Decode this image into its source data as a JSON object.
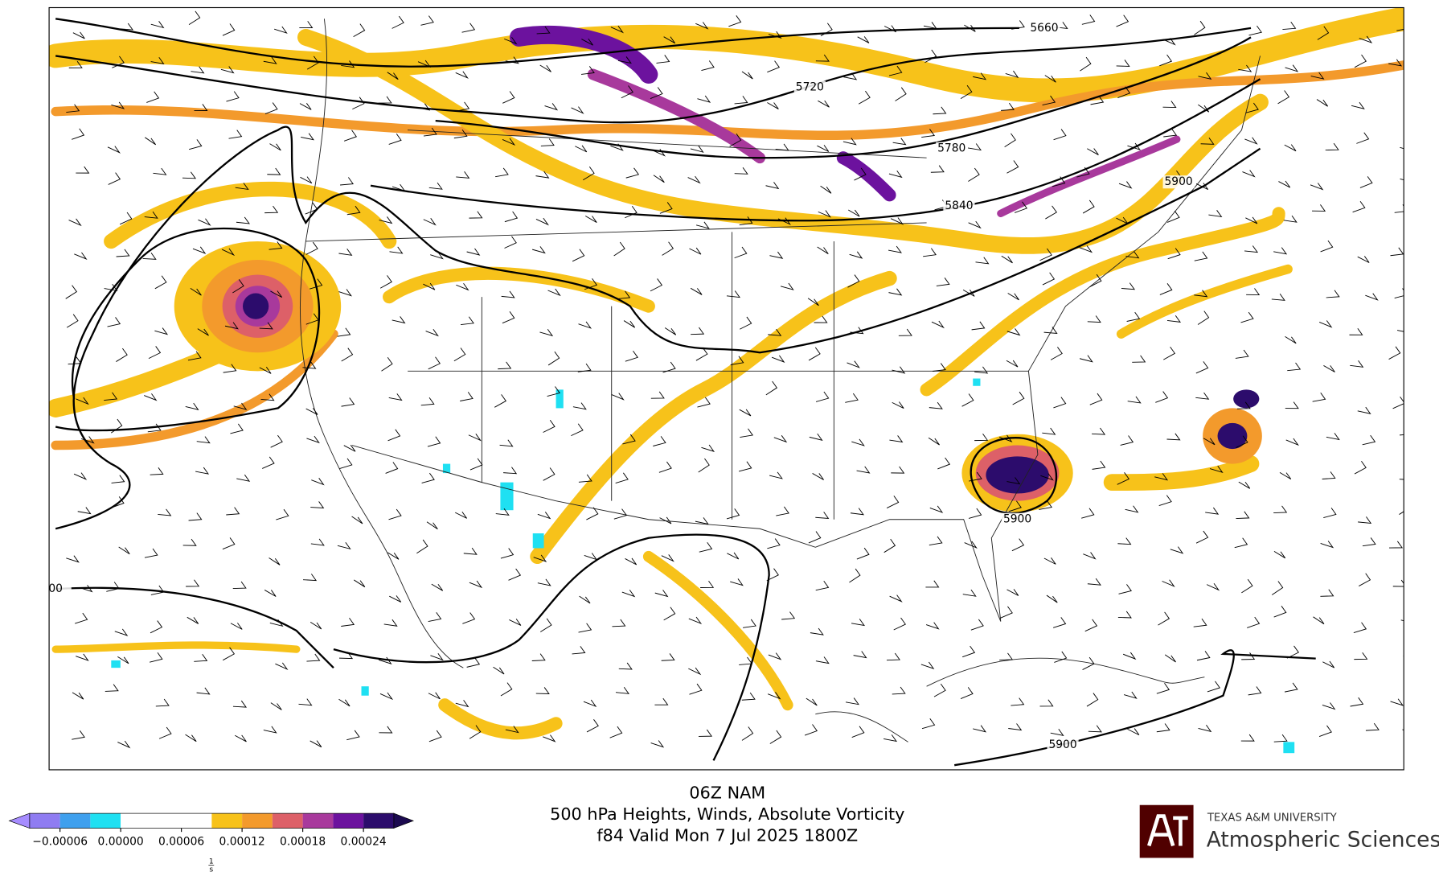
{
  "map": {
    "contour_labels": [
      5660,
      5720,
      5780,
      5840,
      5900,
      5900,
      5900,
      "00"
    ]
  },
  "title": {
    "lines": [
      "06Z NAM",
      "500 hPa Heights, Winds, Absolute Vorticity",
      "f84 Valid Mon 7 Jul 2025 1800Z"
    ]
  },
  "colorbar": {
    "levels": [
      -9e-05,
      -6e-05,
      -3e-05,
      0,
      3e-05,
      6e-05,
      9e-05,
      0.00012,
      0.00015,
      0.00018,
      0.00021,
      0.00024,
      0.00027
    ],
    "colors": [
      "#8f7cf2",
      "#3fa0ee",
      "#1fe0f2",
      "#ffffff",
      "#ffffff",
      "#ffffff",
      "#f7c21a",
      "#f39a2c",
      "#dd6068",
      "#a8399c",
      "#6c129e",
      "#2c0c6c"
    ],
    "extend_colors": [
      "#a68cff",
      "#1c0a50"
    ],
    "ticks": [
      {
        "value": -6e-05,
        "label": "−0.00006"
      },
      {
        "value": 0,
        "label": "0.00000"
      },
      {
        "value": 6e-05,
        "label": "0.00006"
      },
      {
        "value": 0.00012,
        "label": "0.00012"
      },
      {
        "value": 0.00018,
        "label": "0.00018"
      },
      {
        "value": 0.00024,
        "label": "0.00024"
      }
    ],
    "units": {
      "numerator": "1",
      "denominator": "s"
    }
  },
  "logo": {
    "university": "TEXAS A&M UNIVERSITY",
    "department": "Atmospheric Sciences"
  }
}
